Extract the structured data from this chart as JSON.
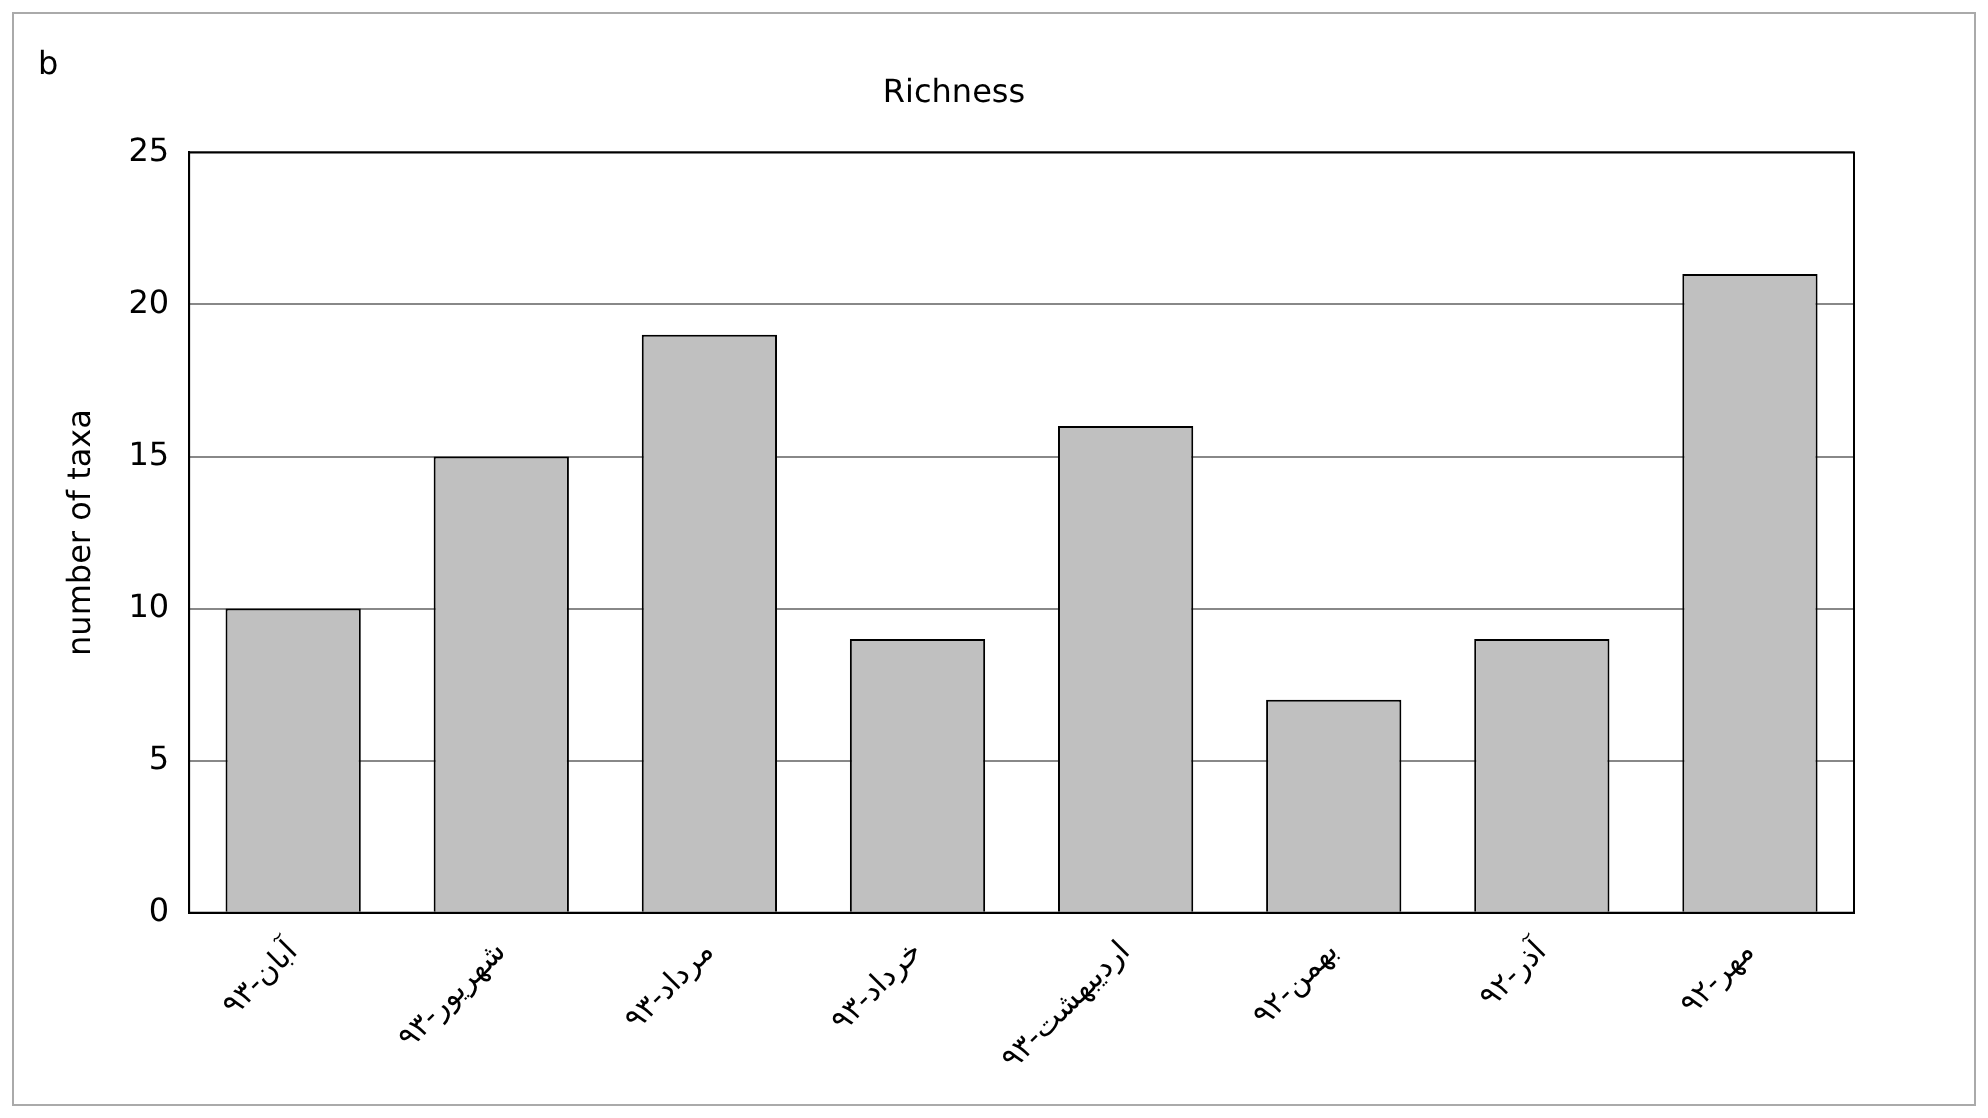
{
  "chart_data": {
    "type": "bar",
    "title": "Richness",
    "ylabel": "number of taxa",
    "annotations": [
      "b"
    ],
    "categories": [
      "آبان-۹۳",
      "شهریور-۹۳",
      "مرداد-۹۳",
      "خرداد-۹۳",
      "اردیبهشت-۹۳",
      "بهمن-۹۲",
      "آذر-۹۲",
      "مهر-۹۲"
    ],
    "values": [
      10,
      15,
      19,
      9,
      16,
      7,
      9,
      21
    ],
    "color": "#c0c0c0",
    "ylim": [
      0,
      25
    ],
    "yticks": [
      0,
      5,
      10,
      15,
      20,
      25
    ],
    "grid": "y",
    "legend": false
  }
}
